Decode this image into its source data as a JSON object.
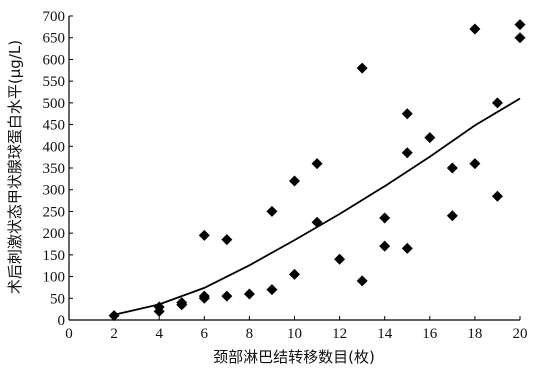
{
  "chart_data": {
    "type": "scatter",
    "xlabel": "颈部淋巴结转移数目(枚)",
    "ylabel": "术后刺激状态甲状腺球蛋白水平(μg/L)",
    "xlim": [
      0,
      20
    ],
    "ylim": [
      0,
      700
    ],
    "x_ticks": [
      0,
      2,
      4,
      6,
      8,
      10,
      12,
      14,
      16,
      18,
      20
    ],
    "y_ticks": [
      0,
      50,
      100,
      150,
      200,
      250,
      300,
      350,
      400,
      450,
      500,
      550,
      600,
      650,
      700
    ],
    "grid": false,
    "marker": "diamond",
    "series": [
      {
        "points": [
          [
            2,
            10
          ],
          [
            4,
            20
          ],
          [
            4,
            30
          ],
          [
            5,
            35
          ],
          [
            5,
            40
          ],
          [
            6,
            50
          ],
          [
            6,
            55
          ],
          [
            6,
            195
          ],
          [
            7,
            55
          ],
          [
            7,
            185
          ],
          [
            8,
            60
          ],
          [
            9,
            70
          ],
          [
            9,
            250
          ],
          [
            10,
            105
          ],
          [
            10,
            320
          ],
          [
            11,
            225
          ],
          [
            11,
            360
          ],
          [
            12,
            140
          ],
          [
            13,
            90
          ],
          [
            13,
            580
          ],
          [
            14,
            170
          ],
          [
            14,
            235
          ],
          [
            15,
            165
          ],
          [
            15,
            385
          ],
          [
            15,
            475
          ],
          [
            16,
            420
          ],
          [
            17,
            240
          ],
          [
            17,
            350
          ],
          [
            18,
            360
          ],
          [
            18,
            670
          ],
          [
            19,
            285
          ],
          [
            19,
            500
          ],
          [
            20,
            650
          ],
          [
            20,
            680
          ]
        ]
      }
    ],
    "trendline": {
      "type": "quadratic",
      "points": [
        [
          2,
          12
        ],
        [
          4,
          36
        ],
        [
          6,
          74
        ],
        [
          8,
          126
        ],
        [
          10,
          184
        ],
        [
          12,
          244
        ],
        [
          14,
          308
        ],
        [
          16,
          376
        ],
        [
          18,
          448
        ],
        [
          20,
          510
        ]
      ]
    },
    "colors": {
      "marker": "#000000",
      "line": "#000000",
      "axis": "#000000"
    }
  }
}
